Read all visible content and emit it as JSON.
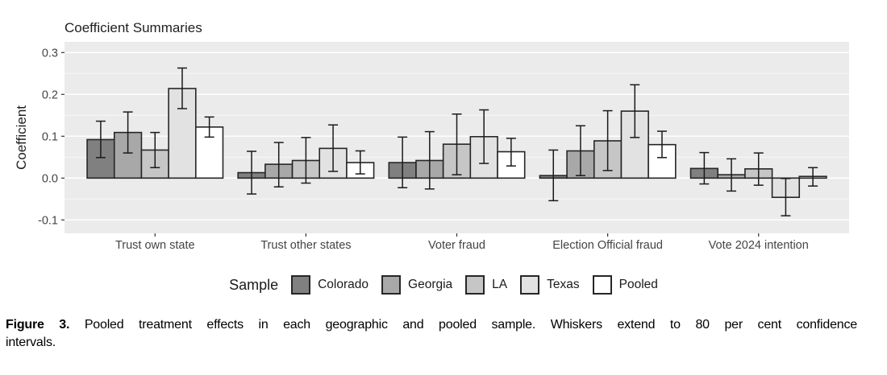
{
  "figure": {
    "legend_title": "Sample",
    "caption": {
      "label": "Figure 3.",
      "line1_rest": "Pooled treatment effects in each geographic and pooled sample. Whiskers extend to 80 per cent confidence",
      "line2": "intervals."
    }
  },
  "chart_data": {
    "type": "bar",
    "title": "Coefficient Summaries",
    "xlabel": "",
    "ylabel": "Coefficient",
    "categories": [
      "Trust own state",
      "Trust other states",
      "Voter fraud",
      "Election Official fraud",
      "Vote 2024 intention"
    ],
    "series": [
      {
        "name": "Colorado",
        "color": "#808080",
        "values": [
          0.092,
          0.013,
          0.037,
          0.006,
          0.023
        ],
        "ci_low": [
          0.049,
          -0.038,
          -0.023,
          -0.054,
          -0.014
        ],
        "ci_high": [
          0.136,
          0.064,
          0.098,
          0.067,
          0.061
        ]
      },
      {
        "name": "Georgia",
        "color": "#a8a8a8",
        "values": [
          0.109,
          0.033,
          0.042,
          0.065,
          0.008
        ],
        "ci_low": [
          0.06,
          -0.021,
          -0.026,
          0.006,
          -0.031
        ],
        "ci_high": [
          0.158,
          0.085,
          0.111,
          0.125,
          0.046
        ]
      },
      {
        "name": "LA",
        "color": "#c6c6c6",
        "values": [
          0.067,
          0.042,
          0.081,
          0.089,
          0.022
        ],
        "ci_low": [
          0.025,
          -0.012,
          0.008,
          0.018,
          -0.017
        ],
        "ci_high": [
          0.109,
          0.097,
          0.153,
          0.161,
          0.06
        ]
      },
      {
        "name": "Texas",
        "color": "#e2e2e2",
        "values": [
          0.214,
          0.071,
          0.099,
          0.16,
          -0.046
        ],
        "ci_low": [
          0.166,
          0.016,
          0.035,
          0.097,
          -0.09
        ],
        "ci_high": [
          0.263,
          0.127,
          0.163,
          0.223,
          -0.001
        ]
      },
      {
        "name": "Pooled",
        "color": "#ffffff",
        "values": [
          0.122,
          0.037,
          0.063,
          0.08,
          0.004
        ],
        "ci_low": [
          0.098,
          0.01,
          0.029,
          0.049,
          -0.019
        ],
        "ci_high": [
          0.146,
          0.065,
          0.095,
          0.112,
          0.025
        ]
      }
    ],
    "yticks": [
      {
        "value": 0.3,
        "label": "0.3"
      },
      {
        "value": 0.2,
        "label": "0.2"
      },
      {
        "value": 0.1,
        "label": "0.1"
      },
      {
        "value": 0.0,
        "label": "0.0"
      },
      {
        "value": -0.1,
        "label": "-0.1"
      }
    ],
    "yticks_minor": [
      0.25,
      0.15,
      0.05,
      -0.05
    ],
    "ylim": [
      -0.131,
      0.326
    ],
    "grid": "major and minor horizontal white gridlines",
    "legend_position": "bottom",
    "error_bars": "80 per cent confidence intervals",
    "panel_background": "#ebebeb",
    "grid_color": "#ffffff",
    "bar_border_color": "#262626",
    "errorbar_color": "#1a1a1a",
    "axis_text_color": "#444444",
    "title_color": "#1f1f1f"
  }
}
